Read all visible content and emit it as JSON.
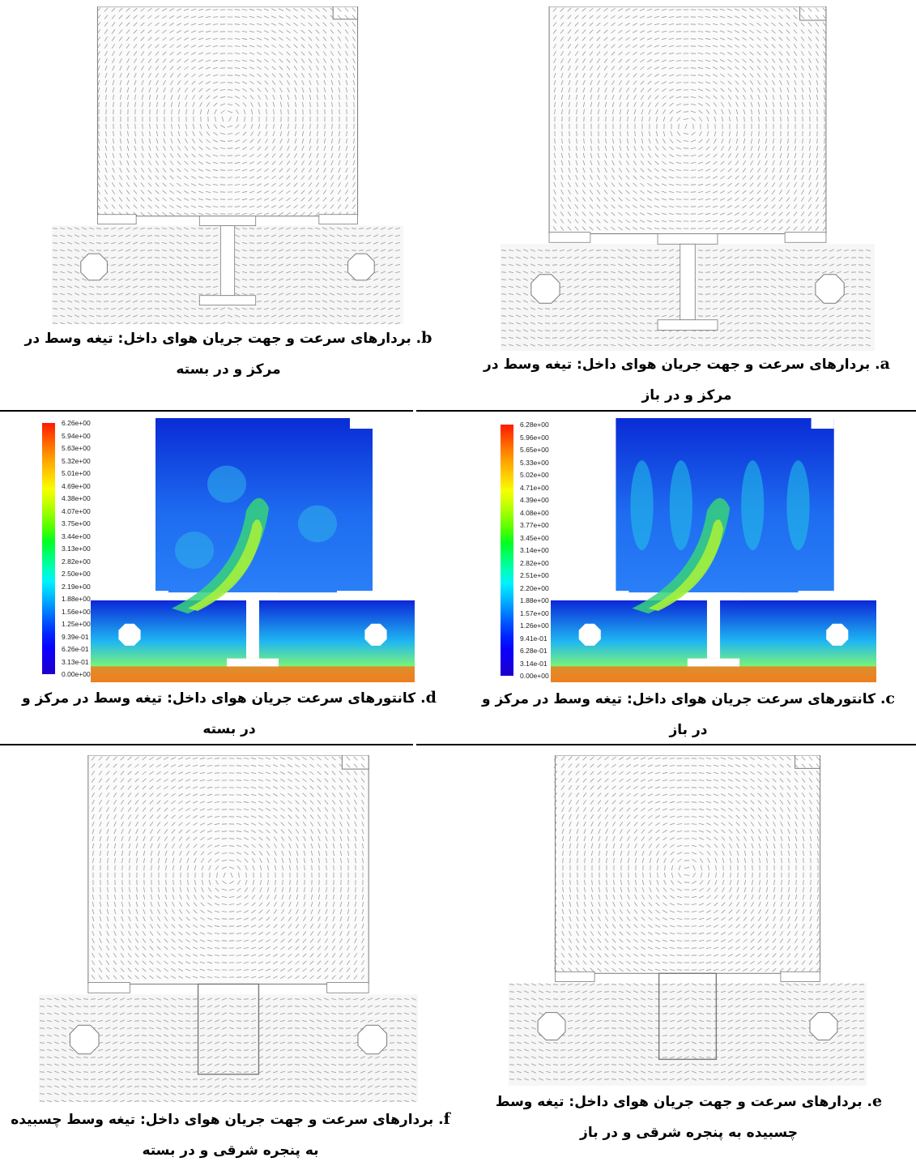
{
  "figures": [
    {
      "id": "a",
      "letter": "a",
      "caption": ". بردارهای سرعت و جهت جریان هوای داخل: تیغه وسط در مرکز و در باز",
      "kind": "vector"
    },
    {
      "id": "b",
      "letter": "b",
      "caption": ". بردارهای سرعت و جهت جریان هوای داخل: تیغه وسط در مرکز و در بسته",
      "kind": "vector"
    },
    {
      "id": "c",
      "letter": "c",
      "caption": ". کانتورهای سرعت جریان هوای داخل: تیغه وسط در مرکز و در باز",
      "kind": "contour",
      "legend": [
        "6.28e+00",
        "5.96e+00",
        "5.65e+00",
        "5.33e+00",
        "5.02e+00",
        "4.71e+00",
        "4.39e+00",
        "4.08e+00",
        "3.77e+00",
        "3.45e+00",
        "3.14e+00",
        "2.82e+00",
        "2.51e+00",
        "2.20e+00",
        "1.88e+00",
        "1.57e+00",
        "1.26e+00",
        "9.41e-01",
        "6.28e-01",
        "3.14e-01",
        "0.00e+00"
      ]
    },
    {
      "id": "d",
      "letter": "d",
      "caption": ". کانتورهای سرعت جریان هوای داخل: تیغه وسط در مرکز و در بسته",
      "kind": "contour",
      "legend": [
        "6.26e+00",
        "5.94e+00",
        "5.63e+00",
        "5.32e+00",
        "5.01e+00",
        "4.69e+00",
        "4.38e+00",
        "4.07e+00",
        "3.75e+00",
        "3.44e+00",
        "3.13e+00",
        "2.82e+00",
        "2.50e+00",
        "2.19e+00",
        "1.88e+00",
        "1.56e+00",
        "1.25e+00",
        "9.39e-01",
        "6.26e-01",
        "3.13e-01",
        "0.00e+00"
      ]
    },
    {
      "id": "e",
      "letter": "e",
      "caption": ". بردارهای سرعت و جهت جریان هوای داخل: تیغه وسط چسبیده به پنجره شرقی و در باز",
      "kind": "vector"
    },
    {
      "id": "f",
      "letter": "f",
      "caption": ". بردارهای سرعت و جهت جریان هوای داخل: تیغه وسط چسبیده به پنجره شرقی و در بسته",
      "kind": "vector"
    }
  ],
  "colors": {
    "grid": "#c8c8c8",
    "vector": "#9a9a9a",
    "outline": "#7a7a7a",
    "rule": "#000000"
  }
}
